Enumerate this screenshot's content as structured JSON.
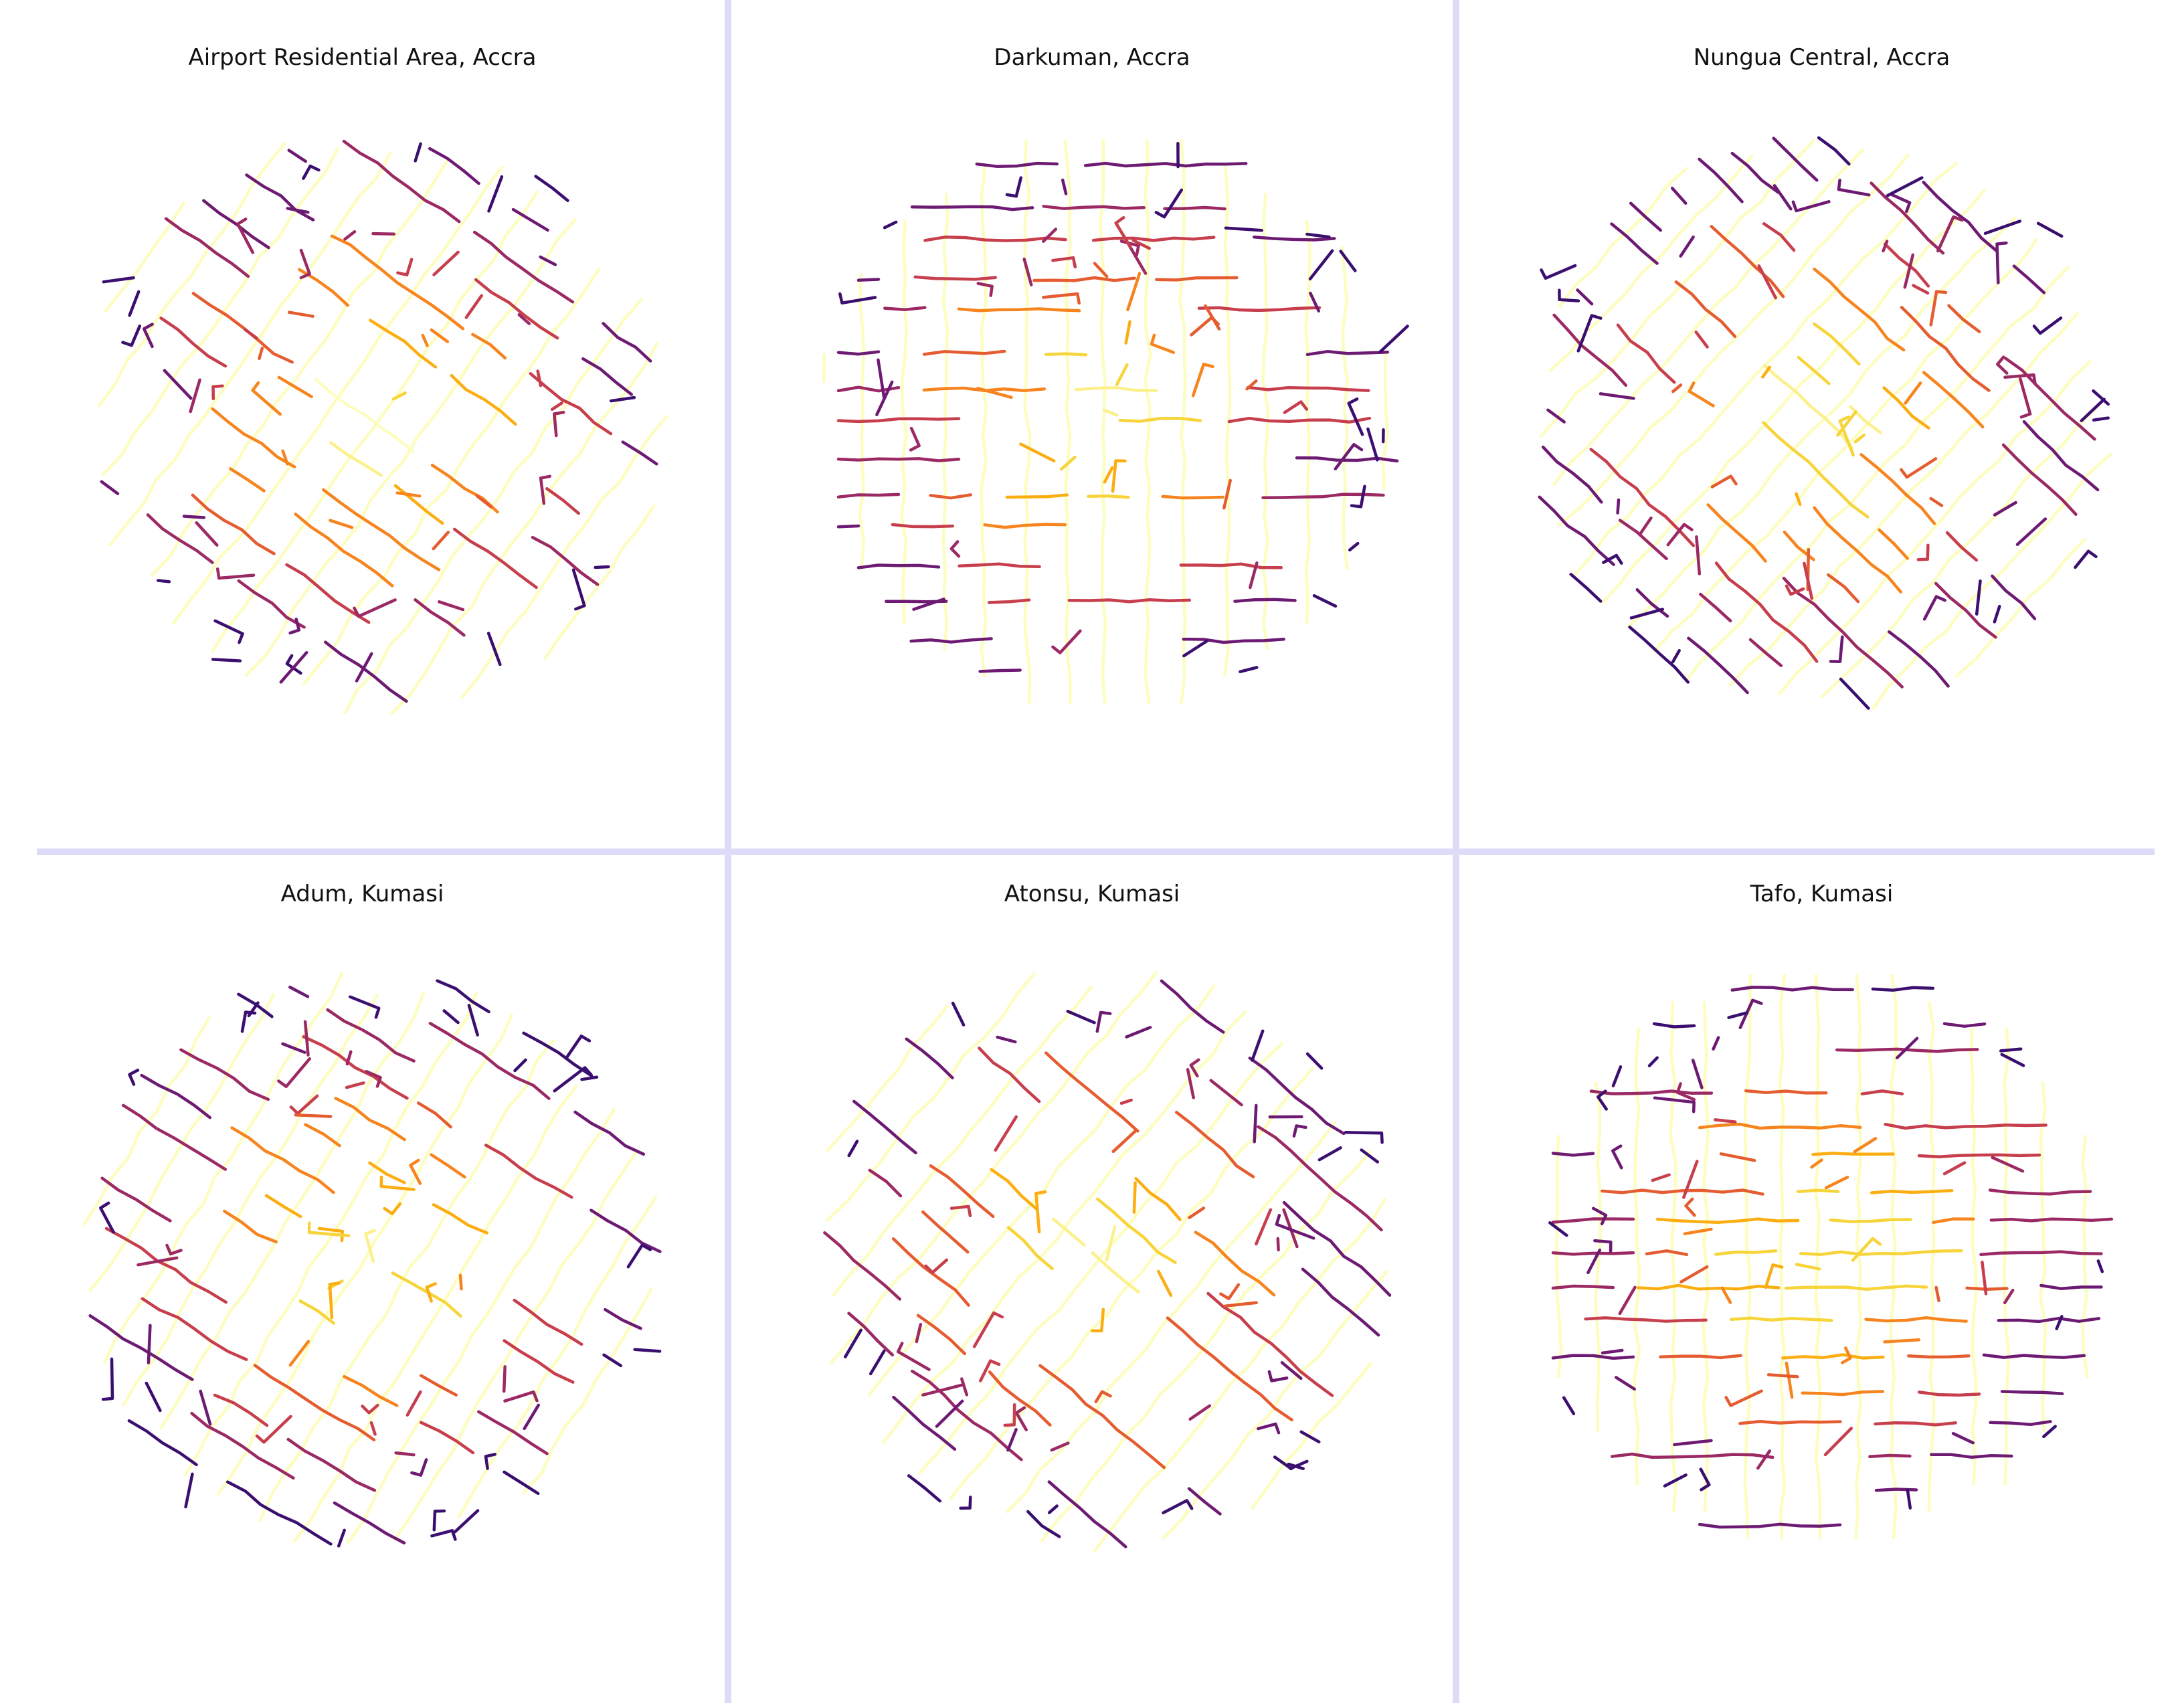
{
  "figure": {
    "divider_color": "#dcdcf8",
    "colormap": "inferno",
    "colormap_stops": [
      "#3b0f70",
      "#6d1a73",
      "#9b2964",
      "#c73e4c",
      "#e55c30",
      "#f6841f",
      "#fbae12",
      "#f7d43a",
      "#fcf08a",
      "#fcfdbf"
    ]
  },
  "panels": [
    {
      "id": "airport-residential",
      "title": "Airport Residential Area, Accra"
    },
    {
      "id": "darkuman",
      "title": "Darkuman, Accra"
    },
    {
      "id": "nungua-central",
      "title": "Nungua Central, Accra"
    },
    {
      "id": "adum",
      "title": "Adum, Kumasi"
    },
    {
      "id": "atonsu",
      "title": "Atonsu, Kumasi"
    },
    {
      "id": "tafo",
      "title": "Tafo, Kumasi"
    }
  ]
}
